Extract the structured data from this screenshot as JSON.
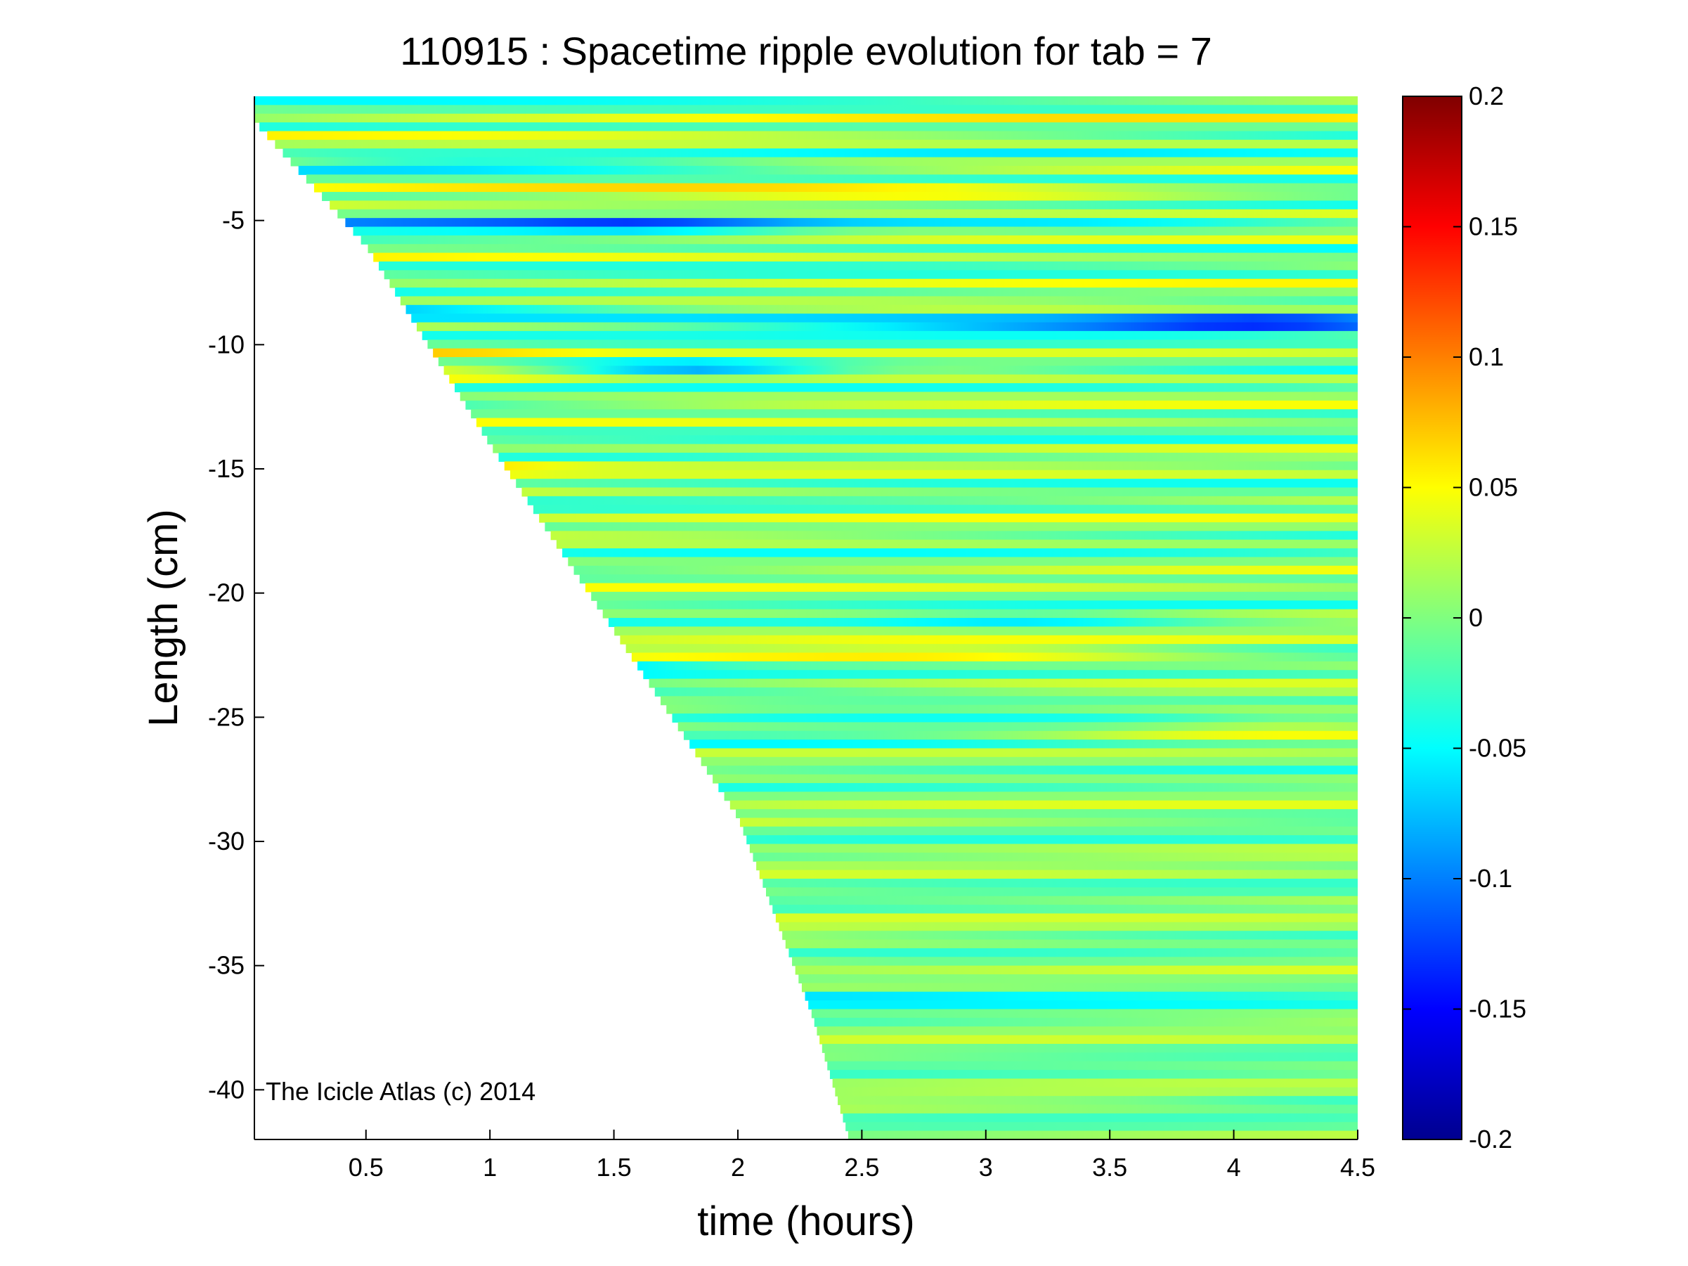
{
  "chart_data": {
    "type": "heatmap",
    "title": "110915 : Spacetime ripple evolution for tab = 7",
    "xlabel": "time (hours)",
    "ylabel": "Length (cm)",
    "xlim": [
      0.05,
      4.5
    ],
    "ylim": [
      -42,
      0
    ],
    "xticks": [
      0.5,
      1,
      1.5,
      2,
      2.5,
      3,
      3.5,
      4,
      4.5
    ],
    "xtick_labels": [
      "0.5",
      "1",
      "1.5",
      "2",
      "2.5",
      "3",
      "3.5",
      "4",
      "4.5"
    ],
    "yticks": [
      -5,
      -10,
      -15,
      -20,
      -25,
      -30,
      -35,
      -40
    ],
    "ytick_labels": [
      "-5",
      "-10",
      "-15",
      "-20",
      "-25",
      "-30",
      "-35",
      "-40"
    ],
    "colorbar": {
      "colormap": "jet",
      "range": [
        -0.2,
        0.2
      ],
      "ticks": [
        0.2,
        0.15,
        0.1,
        0.05,
        0,
        -0.05,
        -0.1,
        -0.15,
        -0.2
      ],
      "tick_labels": [
        "0.2",
        "0.15",
        "0.1",
        "0.05",
        "0",
        "-0.05",
        "-0.1",
        "-0.15",
        "-0.2"
      ]
    },
    "data_front": {
      "description_of_values": "icicle tip position over time (data starts at this time for each length)",
      "points": [
        [
          0.05,
          -1
        ],
        [
          0.5,
          -6
        ],
        [
          1.0,
          -14
        ],
        [
          1.5,
          -21.5
        ],
        [
          2.0,
          -29
        ],
        [
          2.3,
          -37
        ],
        [
          2.45,
          -42
        ]
      ]
    },
    "grid": false,
    "legend": "none"
  },
  "annotation": "The Icicle Atlas (c) 2014",
  "colors": {
    "background": "#ffffff",
    "axis": "#000000"
  }
}
